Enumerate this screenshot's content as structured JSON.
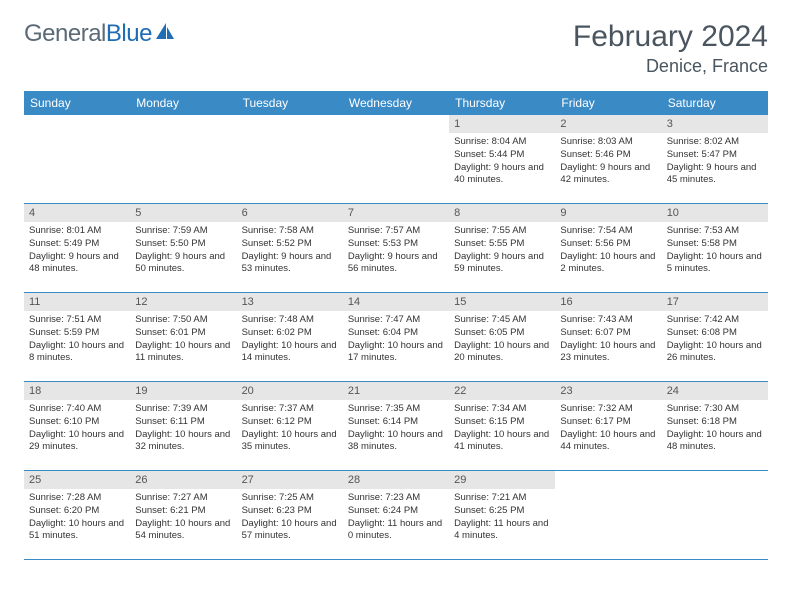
{
  "logo": {
    "text1": "General",
    "text2": "Blue"
  },
  "header": {
    "title": "February 2024",
    "location": "Denice, France"
  },
  "colors": {
    "header_bg": "#3a8ac6",
    "header_text": "#ffffff",
    "daynum_bg": "#e6e6e6",
    "border": "#3a8ac6",
    "title_color": "#4a5560",
    "logo_gray": "#5b6a76",
    "logo_blue": "#1f6db3"
  },
  "dayNames": [
    "Sunday",
    "Monday",
    "Tuesday",
    "Wednesday",
    "Thursday",
    "Friday",
    "Saturday"
  ],
  "weeks": [
    [
      {
        "num": "",
        "sunrise": "",
        "sunset": "",
        "daylight": ""
      },
      {
        "num": "",
        "sunrise": "",
        "sunset": "",
        "daylight": ""
      },
      {
        "num": "",
        "sunrise": "",
        "sunset": "",
        "daylight": ""
      },
      {
        "num": "",
        "sunrise": "",
        "sunset": "",
        "daylight": ""
      },
      {
        "num": "1",
        "sunrise": "Sunrise: 8:04 AM",
        "sunset": "Sunset: 5:44 PM",
        "daylight": "Daylight: 9 hours and 40 minutes."
      },
      {
        "num": "2",
        "sunrise": "Sunrise: 8:03 AM",
        "sunset": "Sunset: 5:46 PM",
        "daylight": "Daylight: 9 hours and 42 minutes."
      },
      {
        "num": "3",
        "sunrise": "Sunrise: 8:02 AM",
        "sunset": "Sunset: 5:47 PM",
        "daylight": "Daylight: 9 hours and 45 minutes."
      }
    ],
    [
      {
        "num": "4",
        "sunrise": "Sunrise: 8:01 AM",
        "sunset": "Sunset: 5:49 PM",
        "daylight": "Daylight: 9 hours and 48 minutes."
      },
      {
        "num": "5",
        "sunrise": "Sunrise: 7:59 AM",
        "sunset": "Sunset: 5:50 PM",
        "daylight": "Daylight: 9 hours and 50 minutes."
      },
      {
        "num": "6",
        "sunrise": "Sunrise: 7:58 AM",
        "sunset": "Sunset: 5:52 PM",
        "daylight": "Daylight: 9 hours and 53 minutes."
      },
      {
        "num": "7",
        "sunrise": "Sunrise: 7:57 AM",
        "sunset": "Sunset: 5:53 PM",
        "daylight": "Daylight: 9 hours and 56 minutes."
      },
      {
        "num": "8",
        "sunrise": "Sunrise: 7:55 AM",
        "sunset": "Sunset: 5:55 PM",
        "daylight": "Daylight: 9 hours and 59 minutes."
      },
      {
        "num": "9",
        "sunrise": "Sunrise: 7:54 AM",
        "sunset": "Sunset: 5:56 PM",
        "daylight": "Daylight: 10 hours and 2 minutes."
      },
      {
        "num": "10",
        "sunrise": "Sunrise: 7:53 AM",
        "sunset": "Sunset: 5:58 PM",
        "daylight": "Daylight: 10 hours and 5 minutes."
      }
    ],
    [
      {
        "num": "11",
        "sunrise": "Sunrise: 7:51 AM",
        "sunset": "Sunset: 5:59 PM",
        "daylight": "Daylight: 10 hours and 8 minutes."
      },
      {
        "num": "12",
        "sunrise": "Sunrise: 7:50 AM",
        "sunset": "Sunset: 6:01 PM",
        "daylight": "Daylight: 10 hours and 11 minutes."
      },
      {
        "num": "13",
        "sunrise": "Sunrise: 7:48 AM",
        "sunset": "Sunset: 6:02 PM",
        "daylight": "Daylight: 10 hours and 14 minutes."
      },
      {
        "num": "14",
        "sunrise": "Sunrise: 7:47 AM",
        "sunset": "Sunset: 6:04 PM",
        "daylight": "Daylight: 10 hours and 17 minutes."
      },
      {
        "num": "15",
        "sunrise": "Sunrise: 7:45 AM",
        "sunset": "Sunset: 6:05 PM",
        "daylight": "Daylight: 10 hours and 20 minutes."
      },
      {
        "num": "16",
        "sunrise": "Sunrise: 7:43 AM",
        "sunset": "Sunset: 6:07 PM",
        "daylight": "Daylight: 10 hours and 23 minutes."
      },
      {
        "num": "17",
        "sunrise": "Sunrise: 7:42 AM",
        "sunset": "Sunset: 6:08 PM",
        "daylight": "Daylight: 10 hours and 26 minutes."
      }
    ],
    [
      {
        "num": "18",
        "sunrise": "Sunrise: 7:40 AM",
        "sunset": "Sunset: 6:10 PM",
        "daylight": "Daylight: 10 hours and 29 minutes."
      },
      {
        "num": "19",
        "sunrise": "Sunrise: 7:39 AM",
        "sunset": "Sunset: 6:11 PM",
        "daylight": "Daylight: 10 hours and 32 minutes."
      },
      {
        "num": "20",
        "sunrise": "Sunrise: 7:37 AM",
        "sunset": "Sunset: 6:12 PM",
        "daylight": "Daylight: 10 hours and 35 minutes."
      },
      {
        "num": "21",
        "sunrise": "Sunrise: 7:35 AM",
        "sunset": "Sunset: 6:14 PM",
        "daylight": "Daylight: 10 hours and 38 minutes."
      },
      {
        "num": "22",
        "sunrise": "Sunrise: 7:34 AM",
        "sunset": "Sunset: 6:15 PM",
        "daylight": "Daylight: 10 hours and 41 minutes."
      },
      {
        "num": "23",
        "sunrise": "Sunrise: 7:32 AM",
        "sunset": "Sunset: 6:17 PM",
        "daylight": "Daylight: 10 hours and 44 minutes."
      },
      {
        "num": "24",
        "sunrise": "Sunrise: 7:30 AM",
        "sunset": "Sunset: 6:18 PM",
        "daylight": "Daylight: 10 hours and 48 minutes."
      }
    ],
    [
      {
        "num": "25",
        "sunrise": "Sunrise: 7:28 AM",
        "sunset": "Sunset: 6:20 PM",
        "daylight": "Daylight: 10 hours and 51 minutes."
      },
      {
        "num": "26",
        "sunrise": "Sunrise: 7:27 AM",
        "sunset": "Sunset: 6:21 PM",
        "daylight": "Daylight: 10 hours and 54 minutes."
      },
      {
        "num": "27",
        "sunrise": "Sunrise: 7:25 AM",
        "sunset": "Sunset: 6:23 PM",
        "daylight": "Daylight: 10 hours and 57 minutes."
      },
      {
        "num": "28",
        "sunrise": "Sunrise: 7:23 AM",
        "sunset": "Sunset: 6:24 PM",
        "daylight": "Daylight: 11 hours and 0 minutes."
      },
      {
        "num": "29",
        "sunrise": "Sunrise: 7:21 AM",
        "sunset": "Sunset: 6:25 PM",
        "daylight": "Daylight: 11 hours and 4 minutes."
      },
      {
        "num": "",
        "sunrise": "",
        "sunset": "",
        "daylight": ""
      },
      {
        "num": "",
        "sunrise": "",
        "sunset": "",
        "daylight": ""
      }
    ]
  ]
}
